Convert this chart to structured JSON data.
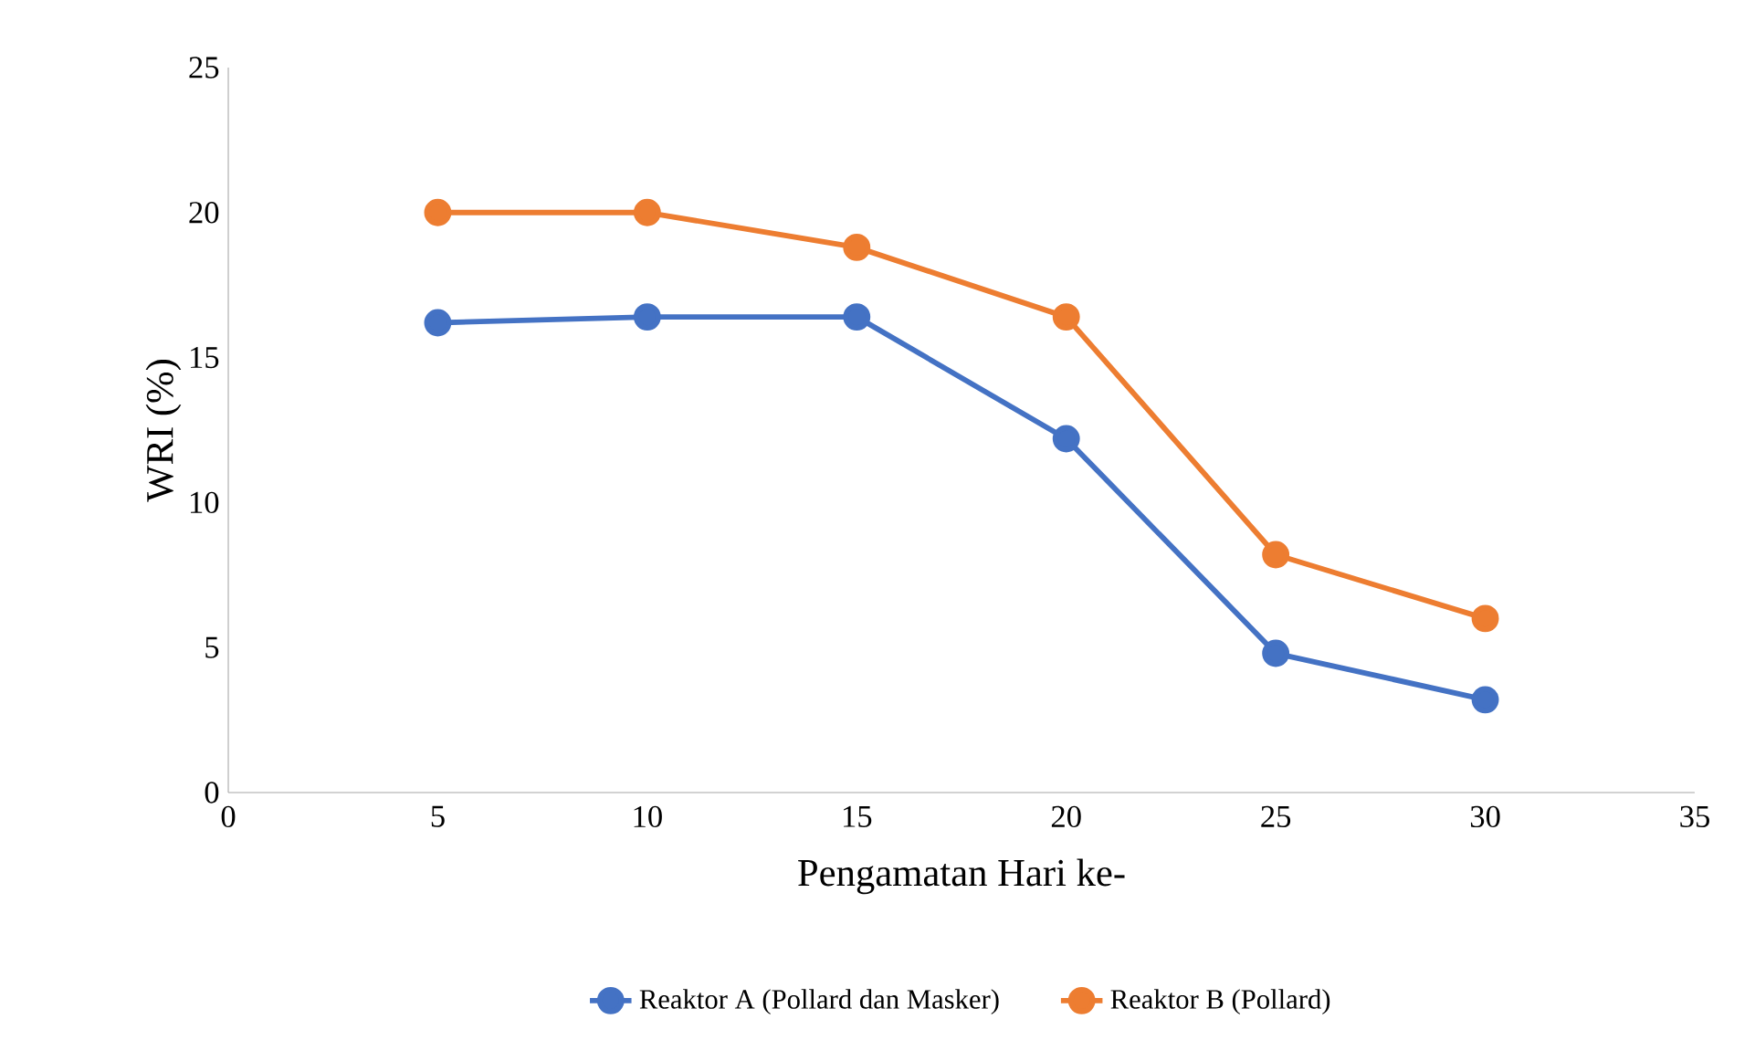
{
  "chart_data": {
    "type": "line",
    "xlabel": "Pengamatan Hari ke-",
    "ylabel": "WRI (%)",
    "x": [
      5,
      10,
      15,
      20,
      25,
      30
    ],
    "series": [
      {
        "name": "Reaktor A (Pollard dan Masker)",
        "color": "#4472c4",
        "values": [
          16.2,
          16.4,
          16.4,
          12.2,
          4.8,
          3.2
        ]
      },
      {
        "name": "Reaktor B (Pollard)",
        "color": "#ed7d31",
        "values": [
          20.0,
          20.0,
          18.8,
          16.4,
          8.2,
          6.0
        ]
      }
    ],
    "xlim": [
      0,
      35
    ],
    "xticks": [
      0,
      5,
      10,
      15,
      20,
      25,
      30,
      35
    ],
    "ylim": [
      0,
      25
    ],
    "yticks": [
      0,
      5,
      10,
      15,
      20,
      25
    ],
    "grid": false,
    "legend": "bottom",
    "marker": "circle",
    "line_style": "solid"
  }
}
